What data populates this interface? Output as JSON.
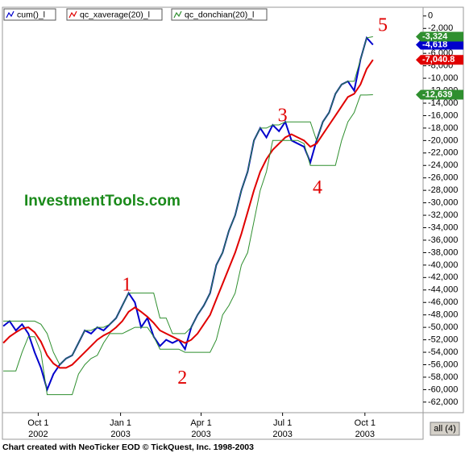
{
  "chart_data": {
    "type": "line",
    "legend": [
      "cum()_l",
      "qc_xaverage(20)_l",
      "qc_donchian(20)_l"
    ],
    "watermark": "InvestmentTools.com",
    "footer": "Chart created with NeoTicker EOD © TickQuest, Inc. 1998-2003",
    "button": "all (4)",
    "x": [
      "2002-08-23",
      "2002-08-30",
      "2002-09-06",
      "2002-09-13",
      "2002-09-20",
      "2002-09-27",
      "2002-10-04",
      "2002-10-11",
      "2002-10-18",
      "2002-10-25",
      "2002-11-01",
      "2002-11-08",
      "2002-11-15",
      "2002-11-22",
      "2002-11-29",
      "2002-12-06",
      "2002-12-13",
      "2002-12-20",
      "2002-12-27",
      "2003-01-03",
      "2003-01-10",
      "2003-01-17",
      "2003-01-24",
      "2003-01-31",
      "2003-02-07",
      "2003-02-14",
      "2003-02-21",
      "2003-02-28",
      "2003-03-07",
      "2003-03-14",
      "2003-03-21",
      "2003-03-28",
      "2003-04-04",
      "2003-04-11",
      "2003-04-18",
      "2003-04-25",
      "2003-05-02",
      "2003-05-09",
      "2003-05-16",
      "2003-05-23",
      "2003-05-30",
      "2003-06-06",
      "2003-06-13",
      "2003-06-20",
      "2003-06-27",
      "2003-07-04",
      "2003-07-11",
      "2003-07-18",
      "2003-07-25",
      "2003-08-01",
      "2003-08-08",
      "2003-08-15",
      "2003-08-22",
      "2003-08-29",
      "2003-09-05",
      "2003-09-12",
      "2003-09-19",
      "2003-09-26",
      "2003-10-03",
      "2003-10-10"
    ],
    "xlim": [
      "2002-08-22",
      "2003-12-05"
    ],
    "xticks": [
      {
        "value": "2002-10-01",
        "label": [
          "Oct 1",
          "2002"
        ]
      },
      {
        "value": "2003-01-01",
        "label": [
          "Jan 1",
          "2003"
        ]
      },
      {
        "value": "2003-04-01",
        "label": [
          "Apr 1",
          "2003"
        ]
      },
      {
        "value": "2003-07-01",
        "label": [
          "Jul 1",
          "2003"
        ]
      },
      {
        "value": "2003-10-01",
        "label": [
          "Oct 1",
          "2003"
        ]
      }
    ],
    "ylim": [
      -63700,
      1400
    ],
    "yticks": [
      0,
      {
        "value": -2000,
        "label": "-2,000"
      },
      {
        "value": -4000,
        "label": "-4,000"
      },
      {
        "value": -6000,
        "label": "-6,000"
      },
      {
        "value": -8000,
        "label": "-8,000"
      },
      {
        "value": -10000,
        "label": "-10,000"
      },
      {
        "value": -12000,
        "label": "-12,000"
      },
      {
        "value": -14000,
        "label": "-14,000"
      },
      {
        "value": -16000,
        "label": "-16,000"
      },
      {
        "value": -18000,
        "label": "-18,000"
      },
      {
        "value": -20000,
        "label": "-20,000"
      },
      {
        "value": -22000,
        "label": "-22,000"
      },
      {
        "value": -24000,
        "label": "-24,000"
      },
      {
        "value": -26000,
        "label": "-26,000"
      },
      {
        "value": -28000,
        "label": "-28,000"
      },
      {
        "value": -30000,
        "label": "-30,000"
      },
      {
        "value": -32000,
        "label": "-32,000"
      },
      {
        "value": -34000,
        "label": "-34,000"
      },
      {
        "value": -36000,
        "label": "-36,000"
      },
      {
        "value": -38000,
        "label": "-38,000"
      },
      {
        "value": -40000,
        "label": "-40,000"
      },
      {
        "value": -42000,
        "label": "-42,000"
      },
      {
        "value": -44000,
        "label": "-44,000"
      },
      {
        "value": -46000,
        "label": "-46,000"
      },
      {
        "value": -48000,
        "label": "-48,000"
      },
      {
        "value": -50000,
        "label": "-50,000"
      },
      {
        "value": -52000,
        "label": "-52,000"
      },
      {
        "value": -54000,
        "label": "-54,000"
      },
      {
        "value": -56000,
        "label": "-56,000"
      },
      {
        "value": -58000,
        "label": "-58,000"
      },
      {
        "value": -60000,
        "label": "-60,000"
      },
      {
        "value": -62000,
        "label": "-62,000"
      }
    ],
    "series": [
      {
        "name": "cum()_l",
        "color": "#0000cc",
        "values": [
          -49800,
          -49000,
          -50500,
          -49500,
          -51000,
          -54000,
          -56500,
          -60000,
          -57500,
          -56000,
          -55000,
          -54500,
          -52500,
          -50500,
          -51000,
          -50000,
          -50500,
          -49500,
          -48500,
          -46500,
          -44500,
          -46000,
          -50000,
          -48500,
          -51500,
          -53000,
          -52000,
          -52500,
          -52000,
          -53500,
          -50000,
          -48000,
          -46500,
          -44500,
          -40000,
          -38000,
          -34500,
          -32000,
          -28000,
          -25000,
          -20000,
          -18000,
          -19500,
          -17500,
          -18500,
          -17000,
          -20000,
          -20500,
          -21000,
          -23500,
          -20000,
          -17000,
          -15500,
          -12500,
          -11000,
          -10500,
          -12000,
          -7000,
          -3500,
          -4618
        ],
        "value_labels": [
          null,
          null,
          null,
          null,
          null,
          null,
          null,
          null,
          null,
          null,
          null,
          null,
          null,
          null,
          null,
          null,
          null,
          null,
          null,
          null,
          null,
          null,
          null,
          null,
          null,
          null,
          null,
          null,
          null,
          null,
          null,
          null,
          null,
          null,
          null,
          null,
          null,
          null,
          null,
          null,
          null,
          null,
          null,
          null,
          null,
          null,
          null,
          null,
          null,
          null,
          null,
          null,
          null,
          null,
          null,
          null,
          null,
          null,
          null,
          "-4,618"
        ]
      },
      {
        "name": "qc_xaverage(20)_l",
        "color": "#e00000",
        "values": [
          -52500,
          -51500,
          -50800,
          -50200,
          -50000,
          -50800,
          -52300,
          -54500,
          -55800,
          -56500,
          -56500,
          -56000,
          -55000,
          -54000,
          -53000,
          -52000,
          -51300,
          -50800,
          -50000,
          -49000,
          -47500,
          -46800,
          -47500,
          -48300,
          -49300,
          -50500,
          -51000,
          -51500,
          -52000,
          -52500,
          -52000,
          -51000,
          -49500,
          -48000,
          -45500,
          -43000,
          -40500,
          -38000,
          -35000,
          -31500,
          -28000,
          -25000,
          -23000,
          -21500,
          -20500,
          -19500,
          -19000,
          -19500,
          -20000,
          -21000,
          -20500,
          -19000,
          -17500,
          -16000,
          -14500,
          -13000,
          -12500,
          -11000,
          -8500,
          -7040.8
        ],
        "value_labels": [
          null,
          null,
          null,
          null,
          null,
          null,
          null,
          null,
          null,
          null,
          null,
          null,
          null,
          null,
          null,
          null,
          null,
          null,
          null,
          null,
          null,
          null,
          null,
          null,
          null,
          null,
          null,
          null,
          null,
          null,
          null,
          null,
          null,
          null,
          null,
          null,
          null,
          null,
          null,
          null,
          null,
          null,
          null,
          null,
          null,
          null,
          null,
          null,
          null,
          null,
          null,
          null,
          null,
          null,
          null,
          null,
          null,
          null,
          null,
          "-7,040.8"
        ]
      },
      {
        "name": "qc_donchian(20)_l",
        "color": "#2f8f2f",
        "values": [
          -49000,
          -49000,
          -49000,
          -49000,
          -49000,
          -49000,
          -49500,
          -51000,
          -54000,
          -56000,
          -55000,
          -54500,
          -52500,
          -50500,
          -50500,
          -50000,
          -50000,
          -49500,
          -48500,
          -46500,
          -44500,
          -44500,
          -44500,
          -44500,
          -44500,
          -48500,
          -48500,
          -51000,
          -51000,
          -51000,
          -50000,
          -48000,
          -46500,
          -44500,
          -40000,
          -38000,
          -34500,
          -32000,
          -28000,
          -25000,
          -20000,
          -18000,
          -18000,
          -17500,
          -17500,
          -17000,
          -17000,
          -17000,
          -17000,
          -17000,
          -20000,
          -17000,
          -15500,
          -12500,
          -11000,
          -10500,
          -10500,
          -7000,
          -3500,
          -3324
        ],
        "value_labels": [
          null,
          null,
          null,
          null,
          null,
          null,
          null,
          null,
          null,
          null,
          null,
          null,
          null,
          null,
          null,
          null,
          null,
          null,
          null,
          null,
          null,
          null,
          null,
          null,
          null,
          null,
          null,
          null,
          null,
          null,
          null,
          null,
          null,
          null,
          null,
          null,
          null,
          null,
          null,
          null,
          null,
          null,
          null,
          null,
          null,
          null,
          null,
          null,
          null,
          null,
          null,
          null,
          null,
          null,
          null,
          null,
          null,
          null,
          null,
          "-3,324"
        ],
        "lower": [
          -57000,
          -57000,
          -57000,
          -54000,
          -51500,
          -51500,
          -54000,
          -60800,
          -60800,
          -60800,
          -60800,
          -60800,
          -57500,
          -56000,
          -55000,
          -54500,
          -52500,
          -51000,
          -51000,
          -51000,
          -50500,
          -50000,
          -50000,
          -50000,
          -51500,
          -53500,
          -53500,
          -53500,
          -53500,
          -54000,
          -54000,
          -54000,
          -54000,
          -54000,
          -52000,
          -48000,
          -46500,
          -44500,
          -40000,
          -38000,
          -33000,
          -28000,
          -25000,
          -20000,
          -20000,
          -20000,
          -20000,
          -20000,
          -20500,
          -24000,
          -24000,
          -24000,
          -24000,
          -24000,
          -20000,
          -17000,
          -15500,
          -12700,
          -12700,
          -12639
        ],
        "lower_labels": [
          null,
          null,
          null,
          null,
          null,
          null,
          null,
          null,
          null,
          null,
          null,
          null,
          null,
          null,
          null,
          null,
          null,
          null,
          null,
          null,
          null,
          null,
          null,
          null,
          null,
          null,
          null,
          null,
          null,
          null,
          null,
          null,
          null,
          null,
          null,
          null,
          null,
          null,
          null,
          null,
          null,
          null,
          null,
          null,
          null,
          null,
          null,
          null,
          null,
          null,
          null,
          null,
          null,
          null,
          null,
          null,
          null,
          null,
          null,
          "-12,639"
        ]
      }
    ],
    "annotations": [
      {
        "text": "1",
        "x": "2003-01-08",
        "y": -43400
      },
      {
        "text": "2",
        "x": "2003-03-11",
        "y": -58300
      },
      {
        "text": "3",
        "x": "2003-07-01",
        "y": -16200
      },
      {
        "text": "4",
        "x": "2003-08-09",
        "y": -27800
      },
      {
        "text": "5",
        "x": "2003-10-21",
        "y": -1700
      }
    ]
  }
}
